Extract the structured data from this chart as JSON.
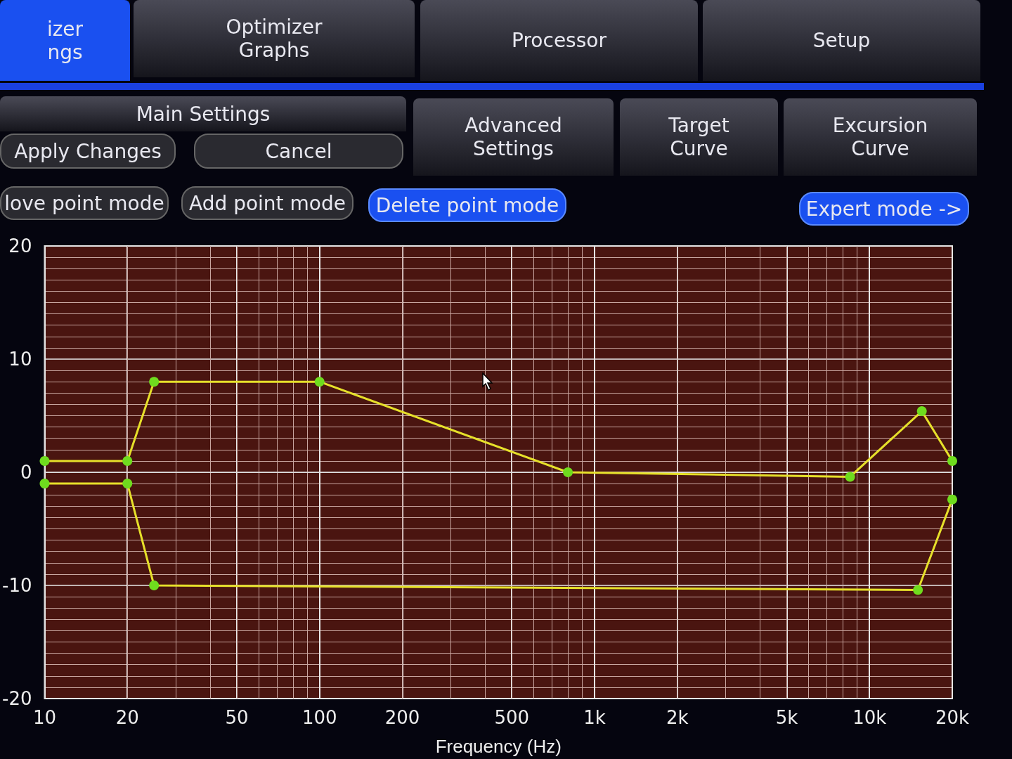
{
  "chart_data": {
    "type": "line",
    "xlabel": "Frequency (Hz)",
    "log": "x",
    "xlim": [
      10,
      20000
    ],
    "xticks": [
      10,
      20,
      50,
      100,
      200,
      500,
      {
        "value": 1000,
        "label": "1k"
      },
      {
        "value": 2000,
        "label": "2k"
      },
      {
        "value": 5000,
        "label": "5k"
      },
      {
        "value": 10000,
        "label": "10k"
      },
      {
        "value": 20000,
        "label": "20k"
      }
    ],
    "ylim": [
      -20,
      20
    ],
    "yticks": [
      -20,
      -10,
      0,
      10,
      20
    ],
    "grid": true,
    "marker": "circle",
    "line_style": "solid",
    "series": [
      {
        "color": "#e6e02a",
        "x": [
          10,
          20,
          25,
          100,
          800,
          8500,
          15500,
          20000
        ],
        "values": [
          1,
          1,
          8,
          8,
          0,
          -0.4,
          5.4,
          1
        ]
      },
      {
        "color": "#e6e02a",
        "x": [
          10,
          20,
          25,
          15000,
          20000
        ],
        "values": [
          -1,
          -1,
          -10,
          -10.4,
          -2.4
        ]
      }
    ],
    "annotations": [
      "izer\nngs",
      "Optimizer\nGraphs",
      "Processor",
      "Setup",
      "Main Settings",
      "Apply Changes",
      "Cancel",
      "Advanced\nSettings",
      "Target\nCurve",
      "Excursion\nCurve",
      "love point mode",
      "Add point mode",
      "Delete point mode",
      "Expert mode ->"
    ]
  }
}
